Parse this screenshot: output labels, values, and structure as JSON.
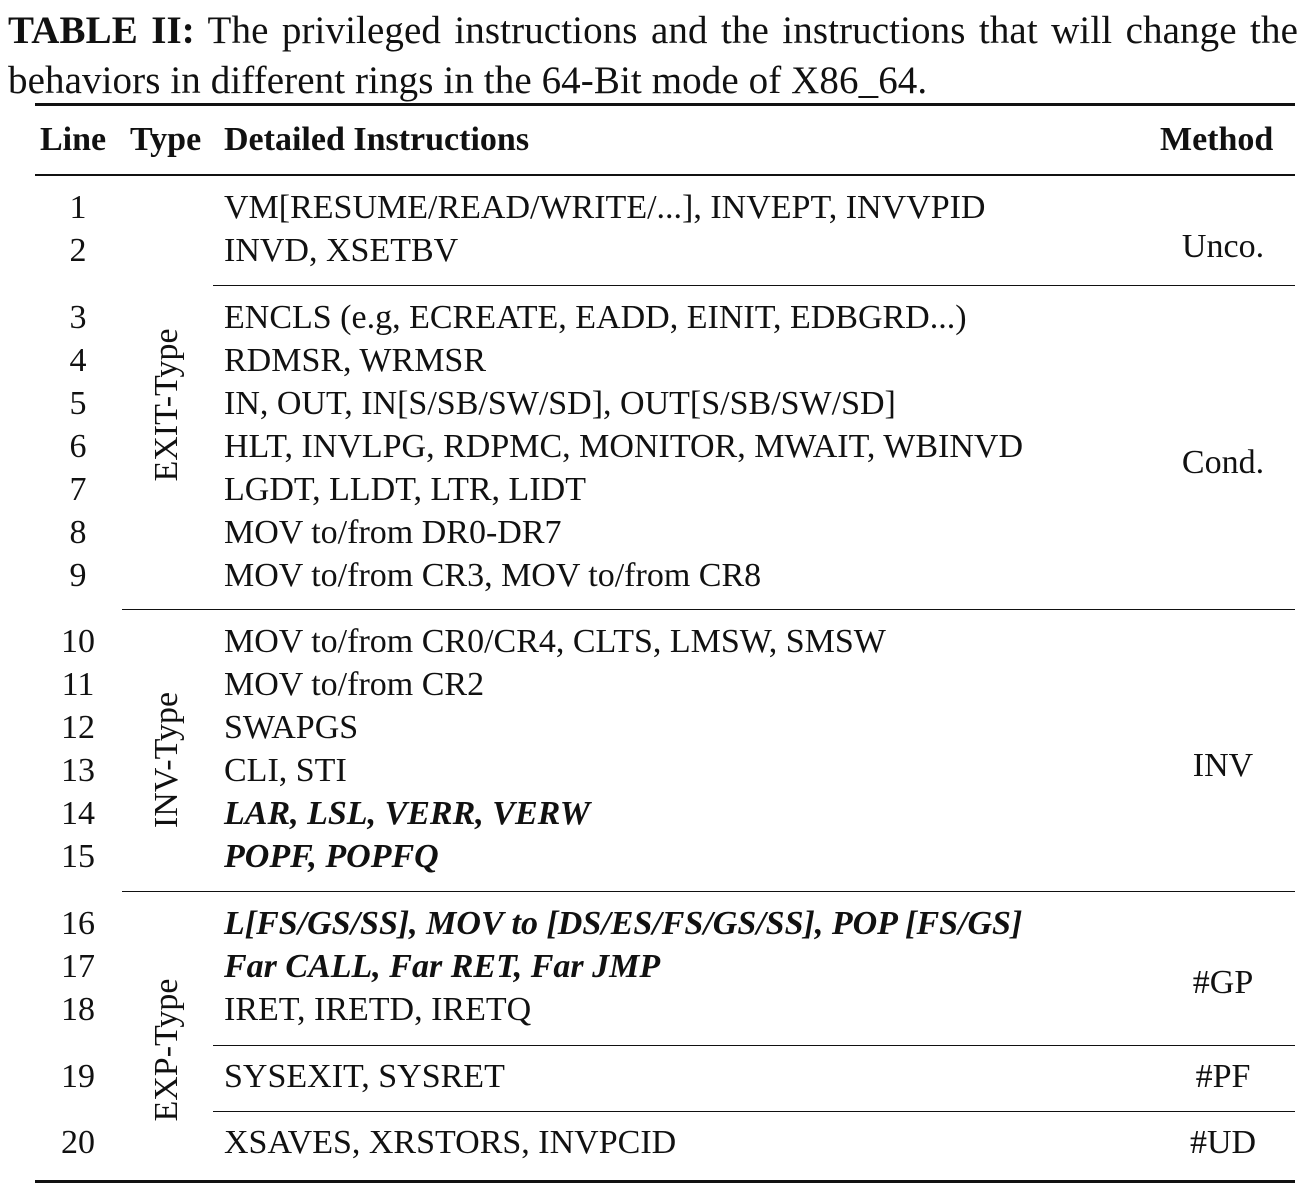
{
  "caption": {
    "label": "TABLE II:",
    "text": " The privileged instructions and the instructions that will change the behaviors in different rings in the 64-Bit mode of X86_64."
  },
  "headers": {
    "line": "Line",
    "type": "Type",
    "detail": "Detailed Instructions",
    "method": "Method"
  },
  "rows": [
    {
      "line": "1",
      "text": "VM[RESUME/READ/WRITE/...], INVEPT, INVVPID"
    },
    {
      "line": "2",
      "text": "INVD, XSETBV"
    },
    {
      "line": "3",
      "text": "ENCLS (e.g, ECREATE, EADD, EINIT, EDBGRD...)"
    },
    {
      "line": "4",
      "text": "RDMSR, WRMSR"
    },
    {
      "line": "5",
      "text": "IN, OUT, IN[S/SB/SW/SD], OUT[S/SB/SW/SD]"
    },
    {
      "line": "6",
      "text": "HLT, INVLPG, RDPMC, MONITOR, MWAIT, WBINVD"
    },
    {
      "line": "7",
      "text": "LGDT, LLDT, LTR, LIDT"
    },
    {
      "line": "8",
      "text": "MOV to/from DR0-DR7"
    },
    {
      "line": "9",
      "text": "MOV to/from CR3, MOV to/from CR8"
    },
    {
      "line": "10",
      "text": "MOV to/from CR0/CR4, CLTS, LMSW, SMSW"
    },
    {
      "line": "11",
      "text": "MOV to/from CR2"
    },
    {
      "line": "12",
      "text": "SWAPGS"
    },
    {
      "line": "13",
      "text": "CLI, STI"
    },
    {
      "line": "14",
      "text": "LAR, LSL, VERR, VERW",
      "emphasis": "bold-italic"
    },
    {
      "line": "15",
      "text": "POPF, POPFQ",
      "emphasis": "bold-italic"
    },
    {
      "line": "16",
      "text": "L[FS/GS/SS], MOV to [DS/ES/FS/GS/SS], POP [FS/GS]",
      "emphasis": "bold-italic"
    },
    {
      "line": "17",
      "text": "Far CALL, Far RET, Far JMP",
      "emphasis": "bold-italic"
    },
    {
      "line": "18",
      "text": "IRET, IRETD, IRETQ"
    },
    {
      "line": "19",
      "text": "SYSEXIT, SYSRET"
    },
    {
      "line": "20",
      "text": "XSAVES, XRSTORS, INVPCID"
    }
  ],
  "types": [
    "EXIT-Type",
    "INV-Type",
    "EXP-Type"
  ],
  "methods": [
    "Unco.",
    "Cond.",
    "INV",
    "#GP",
    "#PF",
    "#UD"
  ]
}
